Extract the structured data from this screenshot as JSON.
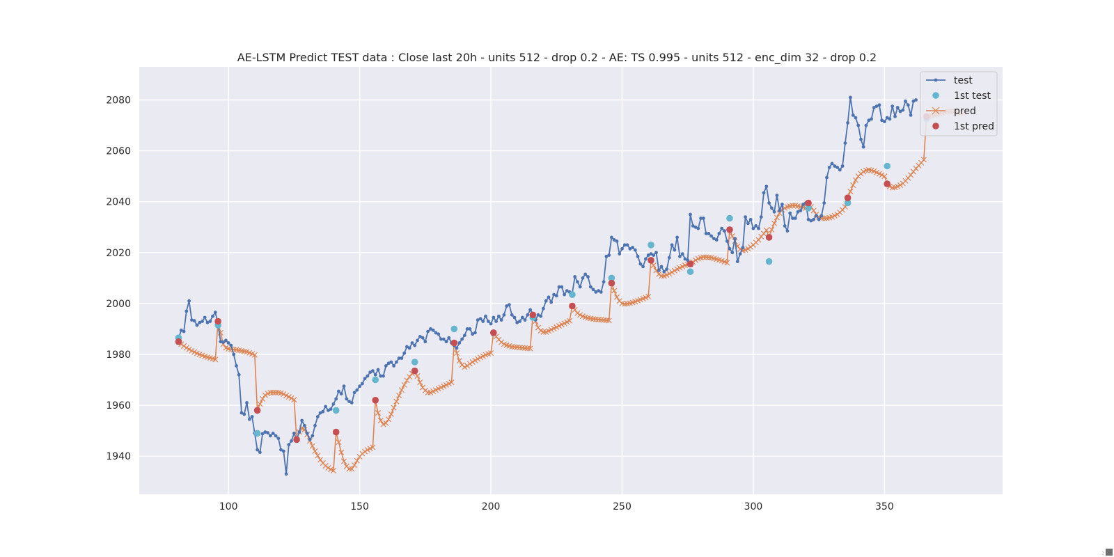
{
  "chart_data": {
    "type": "line",
    "title": "AE-LSTM Predict TEST data : Close last 20h - units 512 - drop 0.2 - AE: TS 0.995 - units 512 - enc_dim 32 - drop 0.2",
    "xlabel": "",
    "ylabel": "",
    "xlim": [
      66,
      395
    ],
    "ylim": [
      1925,
      2093
    ],
    "x_ticks": [
      100,
      150,
      200,
      250,
      300,
      350
    ],
    "y_ticks": [
      1940,
      1960,
      1980,
      2000,
      2020,
      2040,
      2060,
      2080
    ],
    "grid": true,
    "legend_position": "top-right",
    "colors": {
      "test": "#4c72b0",
      "first_test": "#64b5cd",
      "pred": "#dd8452",
      "first_pred": "#c44e52",
      "plot_bg": "#eaeaf2",
      "grid": "#ffffff"
    },
    "series": [
      {
        "name": "test",
        "style": "line-dot",
        "x0": 81,
        "values": [
          1986.2,
          1989.5,
          1989.0,
          1997.0,
          2001.0,
          1993.5,
          1993.2,
          1991.5,
          1992.5,
          1993.0,
          1994.5,
          1992.5,
          1993.0,
          1995.0,
          1996.5,
          1992.0,
          1985.0,
          1984.8,
          1985.5,
          1984.5,
          1983.5,
          1980.0,
          1975.5,
          1972.0,
          1957.0,
          1956.5,
          1961.0,
          1954.5,
          1955.5,
          1949.0,
          1942.5,
          1941.5,
          1948.8,
          1949.5,
          1949.2,
          1948.0,
          1949.0,
          1948.0,
          1947.0,
          1942.5,
          1942.0,
          1933.0,
          1944.5,
          1946.0,
          1949.0,
          1946.5,
          1949.5,
          1954.0,
          1952.0,
          1949.0,
          1946.5,
          1948.0,
          1952.0,
          1955.5,
          1957.0,
          1957.5,
          1959.5,
          1958.0,
          1958.5,
          1960.5,
          1962.5,
          1965.5,
          1964.5,
          1967.5,
          1962.5,
          1961.5,
          1961.0,
          1965.0,
          1966.0,
          1967.5,
          1968.5,
          1970.5,
          1971.5,
          1973.0,
          1973.5,
          1972.0,
          1974.0,
          1971.5,
          1971.5,
          1975.5,
          1976.5,
          1977.0,
          1975.5,
          1977.0,
          1978.5,
          1978.5,
          1980.5,
          1983.0,
          1982.5,
          1984.5,
          1983.5,
          1985.5,
          1987.0,
          1986.5,
          1985.0,
          1989.0,
          1990.0,
          1989.5,
          1988.5,
          1988.0,
          1986.0,
          1986.0,
          1985.0,
          1986.5,
          1984.5,
          1983.5,
          1982.5,
          1984.5,
          1986.0,
          1987.5,
          1990.0,
          1990.0,
          1988.0,
          1988.5,
          1993.5,
          1994.0,
          1993.0,
          1995.0,
          1993.0,
          1992.0,
          1994.5,
          1993.0,
          1995.0,
          1993.5,
          1995.5,
          1999.0,
          1999.5,
          1995.5,
          1994.5,
          1992.5,
          1993.0,
          1994.5,
          1993.5,
          1995.5,
          1997.5,
          1996.0,
          1993.5,
          1995.5,
          1995.0,
          1998.0,
          2001.0,
          2002.5,
          2000.5,
          2003.5,
          2003.0,
          2006.5,
          2006.5,
          2003.5,
          2005.0,
          2004.5,
          2004.0,
          2010.5,
          2008.5,
          2006.5,
          2010.0,
          2011.5,
          2010.5,
          2006.5,
          2005.5,
          2004.5,
          2005.0,
          2004.5,
          2008.5,
          2018.5,
          2019.0,
          2026.0,
          2025.0,
          2024.5,
          2019.5,
          2021.5,
          2023.0,
          2023.0,
          2021.5,
          2022.0,
          2021.0,
          2018.5,
          2015.5,
          2014.5,
          2017.5,
          2019.0,
          2019.5,
          2019.0,
          2020.0,
          2013.0,
          2014.5,
          2012.5,
          2013.5,
          2018.0,
          2023.0,
          2021.0,
          2026.0,
          2018.5,
          2019.5,
          2017.5,
          2017.0,
          2035.0,
          2030.5,
          2030.0,
          2029.5,
          2033.5,
          2033.5,
          2027.5,
          2027.5,
          2026.5,
          2025.5,
          2025.0,
          2027.5,
          2029.5,
          2028.5,
          2024.5,
          2021.5,
          2020.0,
          2025.5,
          2016.5,
          2019.5,
          2022.0,
          2034.0,
          2031.5,
          2033.0,
          2029.5,
          2030.5,
          2029.5,
          2034.0,
          2043.5,
          2046.0,
          2039.5,
          2037.5,
          2036.0,
          2042.5,
          2036.5,
          2039.0,
          2030.5,
          2028.5,
          2035.5,
          2033.5,
          2033.5,
          2036.0,
          2036.5,
          2039.0,
          2039.5,
          2033.0,
          2032.5,
          2033.0,
          2034.5,
          2033.0,
          2034.5,
          2039.5,
          2049.5,
          2053.5,
          2055.0,
          2054.0,
          2053.5,
          2052.5,
          2054.0,
          2063.0,
          2071.0,
          2081.0,
          2074.0,
          2073.0,
          2070.0,
          2064.5,
          2061.5,
          2070.0,
          2072.0,
          2072.5,
          2077.0,
          2077.5,
          2078.0,
          2072.0,
          2071.5,
          2073.0,
          2072.5,
          2077.5,
          2073.5,
          2077.0,
          2075.5,
          2076.0,
          2079.5,
          2078.0,
          2074.0,
          2079.5,
          2080.0
        ]
      },
      {
        "name": "1st test",
        "style": "dot",
        "points": [
          [
            81,
            1986.5
          ],
          [
            96,
            1991.5
          ],
          [
            111,
            1949.0
          ],
          [
            126,
            1946.5
          ],
          [
            141,
            1958.0
          ],
          [
            156,
            1970.0
          ],
          [
            171,
            1977.0
          ],
          [
            186,
            1990.0
          ],
          [
            201,
            1988.5
          ],
          [
            216,
            1994.5
          ],
          [
            231,
            2003.5
          ],
          [
            246,
            2010.0
          ],
          [
            261,
            2023.0
          ],
          [
            276,
            2012.5
          ],
          [
            291,
            2033.5
          ],
          [
            306,
            2016.5
          ],
          [
            321,
            2037.5
          ],
          [
            336,
            2039.5
          ],
          [
            351,
            2054.0
          ],
          [
            366,
            2072.5
          ]
        ]
      },
      {
        "name": "pred",
        "style": "line-x",
        "segments": [
          {
            "x0": 81,
            "values": [
              1985.0,
              1984.0,
              1983.3,
              1982.6,
              1982.0,
              1981.4,
              1980.9,
              1980.4,
              1980.0,
              1979.6,
              1979.2,
              1978.9,
              1978.6,
              1978.3,
              1978.0
            ]
          },
          {
            "x0": 96,
            "values": [
              1993.0,
              1988.5,
              1984.0,
              1982.6,
              1982.2,
              1982.0,
              1981.9,
              1981.8,
              1981.6,
              1981.4,
              1981.2,
              1981.0,
              1980.6,
              1980.2,
              1979.8
            ]
          },
          {
            "x0": 111,
            "values": [
              1958.0,
              1960.5,
              1962.5,
              1964.0,
              1964.6,
              1965.0,
              1965.0,
              1965.0,
              1965.0,
              1964.8,
              1964.4,
              1963.8,
              1963.3,
              1962.8,
              1962.2
            ]
          },
          {
            "x0": 126,
            "values": [
              1946.5,
              1949.5,
              1951.0,
              1950.5,
              1948.5,
              1946.0,
              1944.0,
              1942.0,
              1940.2,
              1938.6,
              1937.3,
              1936.2,
              1935.4,
              1934.8,
              1934.3
            ]
          },
          {
            "x0": 141,
            "values": [
              1949.5,
              1945.5,
              1941.5,
              1938.0,
              1936.0,
              1935.0,
              1935.0,
              1936.5,
              1938.2,
              1939.8,
              1941.0,
              1941.8,
              1942.5,
              1943.0,
              1943.5
            ]
          },
          {
            "x0": 156,
            "values": [
              1962.0,
              1957.0,
              1954.0,
              1952.5,
              1953.0,
              1954.5,
              1956.5,
              1959.0,
              1961.5,
              1963.8,
              1966.0,
              1968.0,
              1969.8,
              1971.2,
              1972.5
            ]
          },
          {
            "x0": 171,
            "values": [
              1973.5,
              1971.5,
              1969.0,
              1967.0,
              1965.8,
              1965.0,
              1965.0,
              1965.5,
              1966.0,
              1966.5,
              1967.0,
              1967.5,
              1968.0,
              1968.5,
              1969.0
            ]
          },
          {
            "x0": 186,
            "values": [
              1984.5,
              1980.5,
              1977.5,
              1975.8,
              1975.0,
              1975.5,
              1976.3,
              1977.0,
              1977.6,
              1978.2,
              1978.8,
              1979.3,
              1979.8,
              1980.2,
              1980.5
            ]
          },
          {
            "x0": 201,
            "values": [
              1988.5,
              1987.0,
              1985.8,
              1984.8,
              1984.0,
              1983.6,
              1983.3,
              1983.0,
              1982.9,
              1982.8,
              1982.7,
              1982.6,
              1982.5,
              1982.4,
              1982.3
            ]
          },
          {
            "x0": 216,
            "values": [
              1995.5,
              1993.0,
              1990.5,
              1989.3,
              1988.8,
              1988.8,
              1989.2,
              1989.7,
              1990.2,
              1990.7,
              1991.2,
              1991.7,
              1992.2,
              1992.7,
              1993.2
            ]
          },
          {
            "x0": 231,
            "values": [
              1999.0,
              1997.5,
              1996.2,
              1995.5,
              1995.0,
              1994.6,
              1994.3,
              1994.1,
              1993.9,
              1993.8,
              1993.7,
              1993.6,
              1993.5,
              1993.4,
              1993.3
            ]
          },
          {
            "x0": 246,
            "values": [
              2008.0,
              2005.0,
              2002.5,
              2001.0,
              2000.0,
              1999.8,
              1999.9,
              2000.1,
              2000.4,
              2000.7,
              2001.1,
              2001.5,
              2001.9,
              2002.3,
              2002.7
            ]
          },
          {
            "x0": 261,
            "values": [
              2017.0,
              2015.0,
              2013.0,
              2011.5,
              2010.8,
              2010.8,
              2011.2,
              2011.7,
              2012.3,
              2012.9,
              2013.5,
              2014.0,
              2014.5,
              2015.0,
              2015.3
            ]
          },
          {
            "x0": 276,
            "values": [
              2015.5,
              2016.3,
              2017.0,
              2017.6,
              2018.0,
              2018.2,
              2018.2,
              2018.1,
              2018.0,
              2017.7,
              2017.4,
              2017.1,
              2016.8,
              2016.4,
              2016.0
            ]
          },
          {
            "x0": 291,
            "values": [
              2029.0,
              2026.5,
              2024.5,
              2022.5,
              2021.3,
              2020.8,
              2021.0,
              2021.5,
              2022.2,
              2023.0,
              2024.0,
              2025.0,
              2026.3,
              2027.5,
              2028.8
            ]
          },
          {
            "x0": 306,
            "values": [
              2026.0,
              2029.0,
              2031.5,
              2033.8,
              2035.5,
              2036.8,
              2037.5,
              2038.0,
              2038.3,
              2038.5,
              2038.5,
              2038.3,
              2038.0,
              2037.8,
              2037.5
            ]
          },
          {
            "x0": 321,
            "values": [
              2039.5,
              2038.0,
              2036.5,
              2035.0,
              2034.0,
              2033.5,
              2033.5,
              2033.5,
              2033.7,
              2034.0,
              2034.5,
              2035.0,
              2035.8,
              2036.8,
              2038.0
            ]
          },
          {
            "x0": 336,
            "values": [
              2041.5,
              2044.0,
              2046.5,
              2048.5,
              2050.0,
              2051.0,
              2051.8,
              2052.3,
              2052.5,
              2052.3,
              2052.0,
              2051.5,
              2051.0,
              2050.5,
              2050.0
            ]
          },
          {
            "x0": 351,
            "values": [
              2047.0,
              2046.0,
              2045.5,
              2045.6,
              2046.0,
              2046.5,
              2047.2,
              2048.2,
              2049.3,
              2050.5,
              2051.8,
              2053.0,
              2054.2,
              2055.3,
              2056.5
            ]
          },
          {
            "x0": 366,
            "values": [
              2073.5,
              2073.5,
              2073.8,
              2074.0,
              2074.3,
              2074.6,
              2074.9,
              2075.2,
              2075.4,
              2075.5,
              2075.5,
              2075.3,
              2075.0,
              2074.8,
              2074.5
            ]
          }
        ]
      },
      {
        "name": "1st pred",
        "style": "dot",
        "points": [
          [
            81,
            1985.0
          ],
          [
            96,
            1993.0
          ],
          [
            111,
            1958.0
          ],
          [
            126,
            1946.5
          ],
          [
            141,
            1949.5
          ],
          [
            156,
            1962.0
          ],
          [
            171,
            1973.5
          ],
          [
            186,
            1984.5
          ],
          [
            201,
            1988.5
          ],
          [
            216,
            1995.5
          ],
          [
            231,
            1999.0
          ],
          [
            246,
            2008.0
          ],
          [
            261,
            2017.0
          ],
          [
            276,
            2015.5
          ],
          [
            291,
            2029.0
          ],
          [
            306,
            2026.0
          ],
          [
            321,
            2039.5
          ],
          [
            336,
            2041.5
          ],
          [
            351,
            2047.0
          ],
          [
            366,
            2073.5
          ]
        ]
      }
    ]
  }
}
